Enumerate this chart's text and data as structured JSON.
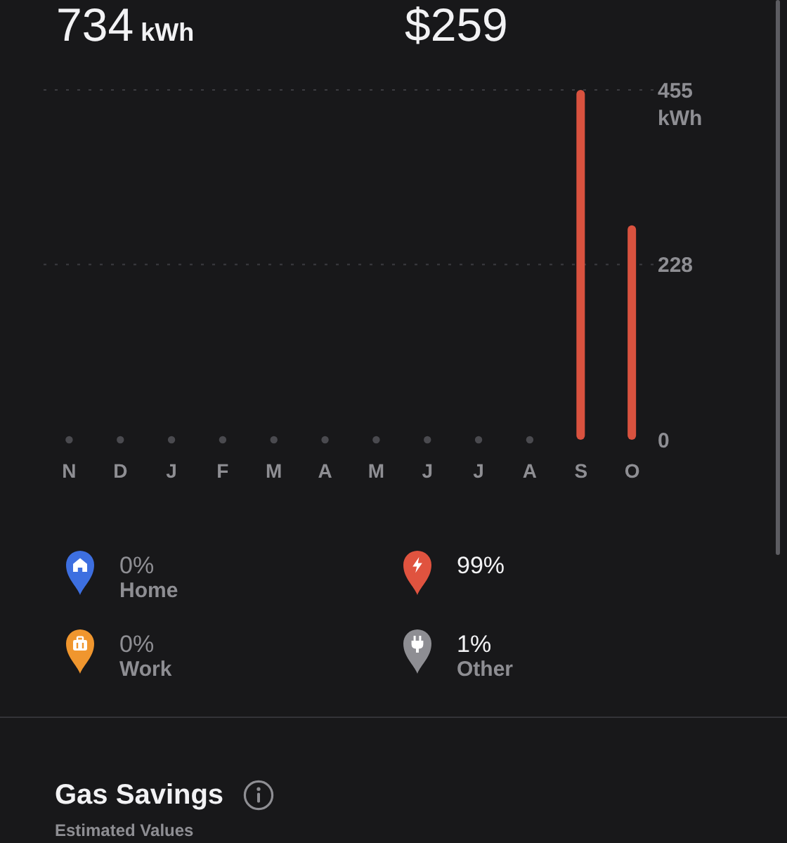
{
  "chart_data": [
    {
      "type": "bar",
      "categories": [
        "N",
        "D",
        "J",
        "F",
        "M",
        "A",
        "M",
        "J",
        "J",
        "A",
        "S",
        "O"
      ],
      "values": [
        0,
        0,
        0,
        0,
        0,
        0,
        0,
        0,
        0,
        0,
        455,
        279
      ],
      "color": "#d9523f",
      "ylabel": "kWh",
      "ylim": [
        0,
        455
      ],
      "yticks": [
        0,
        228,
        455
      ],
      "grid": "y",
      "annotations": [
        "734",
        "kWh",
        "$259"
      ]
    },
    {
      "type": "other",
      "categories": [
        "Home",
        null,
        "Work",
        "Other"
      ],
      "values": [
        0,
        99,
        0,
        1
      ],
      "value_labels": [
        "0%",
        "99%",
        "0%",
        "1%"
      ],
      "colors": [
        "#3d6fe0",
        "#e0533f",
        "#f0962e",
        "#8e8e93"
      ]
    },
    {
      "type": "other",
      "title": "Gas Savings",
      "subtitle": "Estimated Values"
    }
  ]
}
